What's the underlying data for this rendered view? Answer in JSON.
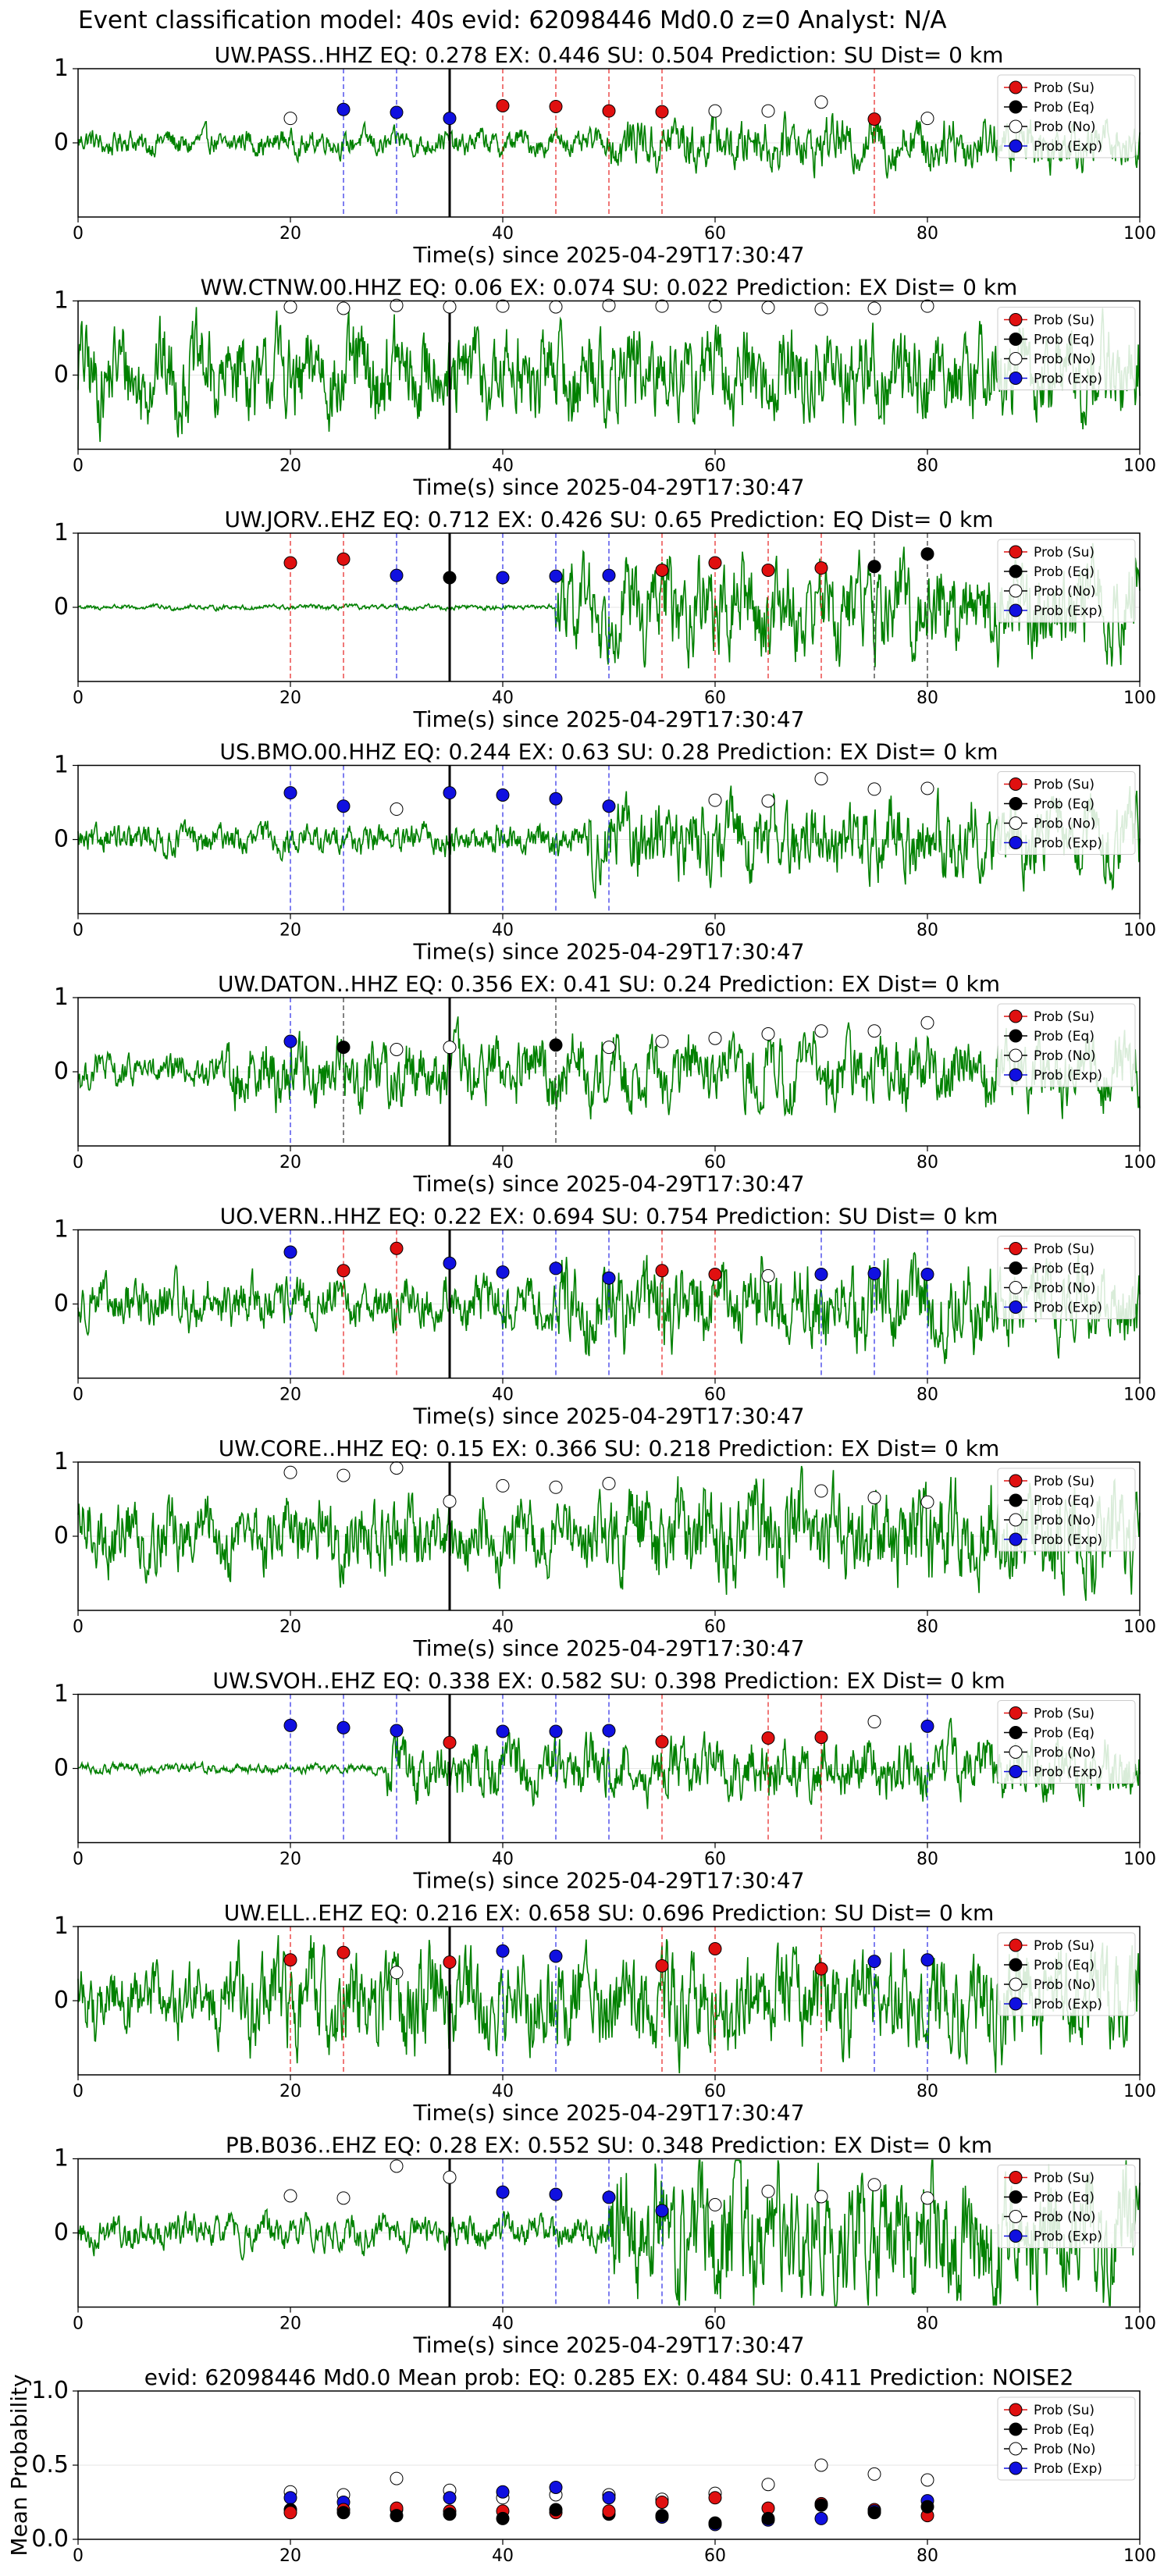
{
  "suptitle": "Event classification model: 40s evid: 62098446 Md0.0 z=0 Analyst: N/A",
  "colors": {
    "waveform": "#008000",
    "su": "#e01010",
    "eq": "#000000",
    "no": "#ffffff",
    "exp": "#1010e0",
    "axis": "#000000"
  },
  "legend_labels": [
    "Prob (Su)",
    "Prob (Eq)",
    "Prob (No)",
    "Prob (Exp)"
  ],
  "chart_data": [
    {
      "type": "line",
      "title": "UW.PASS..HHZ   EQ: 0.278  EX: 0.446  SU: 0.504   Prediction: SU    Dist= 0 km",
      "xlabel": "Time(s) since 2025-04-29T17:30:47",
      "xlim": [
        0,
        100
      ],
      "ylim": [
        -1,
        1
      ],
      "xticks": [
        0,
        20,
        40,
        60,
        80,
        100
      ],
      "yticks": [
        0,
        1
      ],
      "arrival": 35,
      "legend": "top-right",
      "amp": 0.15,
      "burst_start": 50,
      "burst_amp": 0.3,
      "points": [
        [
          20,
          "no",
          0.33
        ],
        [
          25,
          "exp",
          0.45
        ],
        [
          30,
          "exp",
          0.41
        ],
        [
          35,
          "exp",
          0.33
        ],
        [
          40,
          "su",
          0.5
        ],
        [
          45,
          "su",
          0.49
        ],
        [
          50,
          "su",
          0.43
        ],
        [
          55,
          "su",
          0.42
        ],
        [
          60,
          "no",
          0.43
        ],
        [
          65,
          "no",
          0.43
        ],
        [
          70,
          "no",
          0.55
        ],
        [
          75,
          "su",
          0.32
        ],
        [
          80,
          "no",
          0.33
        ]
      ]
    },
    {
      "type": "line",
      "title": "WW.CTNW.00.HHZ   EQ: 0.06  EX: 0.074  SU: 0.022   Prediction: EX    Dist= 0 km",
      "xlabel": "Time(s) since 2025-04-29T17:30:47",
      "xlim": [
        0,
        100
      ],
      "ylim": [
        -1,
        1
      ],
      "xticks": [
        0,
        20,
        40,
        60,
        80,
        100
      ],
      "yticks": [
        0,
        1
      ],
      "arrival": 35,
      "legend": "top-right",
      "amp": 0.55,
      "burst_start": 0,
      "burst_amp": 0.55,
      "points": [
        [
          20,
          "no",
          0.92
        ],
        [
          25,
          "no",
          0.9
        ],
        [
          30,
          "no",
          0.94
        ],
        [
          35,
          "no",
          0.92
        ],
        [
          40,
          "no",
          0.93
        ],
        [
          45,
          "no",
          0.92
        ],
        [
          50,
          "no",
          0.94
        ],
        [
          55,
          "no",
          0.93
        ],
        [
          60,
          "no",
          0.93
        ],
        [
          65,
          "no",
          0.91
        ],
        [
          70,
          "no",
          0.89
        ],
        [
          75,
          "no",
          0.9
        ],
        [
          80,
          "no",
          0.93
        ]
      ]
    },
    {
      "type": "line",
      "title": "UW.JORV..EHZ   EQ: 0.712  EX: 0.426  SU: 0.65   Prediction: EQ    Dist= 0 km",
      "xlabel": "Time(s) since 2025-04-29T17:30:47",
      "xlim": [
        0,
        100
      ],
      "ylim": [
        -1,
        1
      ],
      "xticks": [
        0,
        20,
        40,
        60,
        80,
        100
      ],
      "yticks": [
        0,
        1
      ],
      "arrival": 35,
      "legend": "top-right",
      "amp": 0.03,
      "burst_start": 45,
      "burst_amp": 0.55,
      "points": [
        [
          20,
          "su",
          0.6
        ],
        [
          25,
          "su",
          0.65
        ],
        [
          30,
          "exp",
          0.43
        ],
        [
          35,
          "eq",
          0.4
        ],
        [
          40,
          "exp",
          0.4
        ],
        [
          45,
          "exp",
          0.42
        ],
        [
          50,
          "exp",
          0.43
        ],
        [
          55,
          "su",
          0.5
        ],
        [
          60,
          "su",
          0.6
        ],
        [
          65,
          "su",
          0.5
        ],
        [
          70,
          "su",
          0.53
        ],
        [
          75,
          "eq",
          0.55
        ],
        [
          80,
          "eq",
          0.72
        ]
      ]
    },
    {
      "type": "line",
      "title": "US.BMO.00.HHZ   EQ: 0.244  EX: 0.63  SU: 0.28   Prediction: EX    Dist= 0 km",
      "xlabel": "Time(s) since 2025-04-29T17:30:47",
      "xlim": [
        0,
        100
      ],
      "ylim": [
        -1,
        1
      ],
      "xticks": [
        0,
        20,
        40,
        60,
        80,
        100
      ],
      "yticks": [
        0,
        1
      ],
      "arrival": 35,
      "legend": "top-right",
      "amp": 0.18,
      "burst_start": 48,
      "burst_amp": 0.45,
      "points": [
        [
          20,
          "exp",
          0.63
        ],
        [
          25,
          "exp",
          0.45
        ],
        [
          30,
          "no",
          0.41
        ],
        [
          35,
          "exp",
          0.63
        ],
        [
          40,
          "exp",
          0.6
        ],
        [
          45,
          "exp",
          0.55
        ],
        [
          50,
          "exp",
          0.45
        ],
        [
          60,
          "no",
          0.53
        ],
        [
          65,
          "no",
          0.52
        ],
        [
          70,
          "no",
          0.82
        ],
        [
          75,
          "no",
          0.68
        ],
        [
          80,
          "no",
          0.69
        ]
      ]
    },
    {
      "type": "line",
      "title": "UW.DATON..HHZ   EQ: 0.356  EX: 0.41  SU: 0.24   Prediction: EX    Dist= 0 km",
      "xlabel": "Time(s) since 2025-04-29T17:30:47",
      "xlim": [
        0,
        100
      ],
      "ylim": [
        -1,
        1
      ],
      "xticks": [
        0,
        20,
        40,
        60,
        80,
        100
      ],
      "yticks": [
        0,
        1
      ],
      "arrival": 35,
      "legend": "top-right",
      "amp": 0.2,
      "burst_start": 14,
      "burst_amp": 0.4,
      "points": [
        [
          20,
          "exp",
          0.41
        ],
        [
          25,
          "eq",
          0.33
        ],
        [
          30,
          "no",
          0.3
        ],
        [
          35,
          "no",
          0.33
        ],
        [
          45,
          "eq",
          0.36
        ],
        [
          50,
          "no",
          0.33
        ],
        [
          55,
          "no",
          0.41
        ],
        [
          60,
          "no",
          0.45
        ],
        [
          65,
          "no",
          0.51
        ],
        [
          70,
          "no",
          0.55
        ],
        [
          75,
          "no",
          0.55
        ],
        [
          80,
          "no",
          0.66
        ]
      ]
    },
    {
      "type": "line",
      "title": "UO.VERN..HHZ   EQ: 0.22  EX: 0.694  SU: 0.754   Prediction: SU    Dist= 0 km",
      "xlabel": "Time(s) since 2025-04-29T17:30:47",
      "xlim": [
        0,
        100
      ],
      "ylim": [
        -1,
        1
      ],
      "xticks": [
        0,
        20,
        40,
        60,
        80,
        100
      ],
      "yticks": [
        0,
        1
      ],
      "arrival": 35,
      "legend": "top-right",
      "amp": 0.3,
      "burst_start": 45,
      "burst_amp": 0.5,
      "points": [
        [
          20,
          "exp",
          0.7
        ],
        [
          25,
          "su",
          0.45
        ],
        [
          30,
          "su",
          0.75
        ],
        [
          35,
          "exp",
          0.55
        ],
        [
          40,
          "exp",
          0.43
        ],
        [
          45,
          "exp",
          0.48
        ],
        [
          50,
          "exp",
          0.35
        ],
        [
          55,
          "su",
          0.45
        ],
        [
          60,
          "su",
          0.4
        ],
        [
          65,
          "no",
          0.38
        ],
        [
          70,
          "exp",
          0.4
        ],
        [
          75,
          "exp",
          0.41
        ],
        [
          80,
          "exp",
          0.4
        ]
      ]
    },
    {
      "type": "line",
      "title": "UW.CORE..HHZ   EQ: 0.15  EX: 0.366  SU: 0.218   Prediction: EX    Dist= 0 km",
      "xlabel": "Time(s) since 2025-04-29T17:30:47",
      "xlim": [
        0,
        100
      ],
      "ylim": [
        -1,
        1
      ],
      "xticks": [
        0,
        20,
        40,
        60,
        80,
        100
      ],
      "yticks": [
        0,
        1
      ],
      "arrival": 35,
      "legend": "top-right",
      "amp": 0.42,
      "burst_start": 50,
      "burst_amp": 0.6,
      "points": [
        [
          20,
          "no",
          0.86
        ],
        [
          25,
          "no",
          0.82
        ],
        [
          30,
          "no",
          0.92
        ],
        [
          35,
          "no",
          0.47
        ],
        [
          40,
          "no",
          0.68
        ],
        [
          45,
          "no",
          0.66
        ],
        [
          50,
          "no",
          0.71
        ],
        [
          70,
          "no",
          0.61
        ],
        [
          75,
          "no",
          0.52
        ],
        [
          80,
          "no",
          0.46
        ]
      ]
    },
    {
      "type": "line",
      "title": "UW.SVOH..EHZ   EQ: 0.338  EX: 0.582  SU: 0.398   Prediction: EX    Dist= 0 km",
      "xlabel": "Time(s) since 2025-04-29T17:30:47",
      "xlim": [
        0,
        100
      ],
      "ylim": [
        -1,
        1
      ],
      "xticks": [
        0,
        20,
        40,
        60,
        80,
        100
      ],
      "yticks": [
        0,
        1
      ],
      "arrival": 35,
      "legend": "top-right",
      "amp": 0.06,
      "burst_start": 29,
      "burst_amp": 0.35,
      "points": [
        [
          20,
          "exp",
          0.58
        ],
        [
          25,
          "exp",
          0.55
        ],
        [
          30,
          "exp",
          0.51
        ],
        [
          35,
          "su",
          0.35
        ],
        [
          40,
          "exp",
          0.5
        ],
        [
          45,
          "exp",
          0.5
        ],
        [
          50,
          "exp",
          0.51
        ],
        [
          55,
          "su",
          0.36
        ],
        [
          65,
          "su",
          0.41
        ],
        [
          70,
          "su",
          0.42
        ],
        [
          75,
          "no",
          0.63
        ],
        [
          80,
          "exp",
          0.57
        ]
      ]
    },
    {
      "type": "line",
      "title": "UW.ELL..EHZ   EQ: 0.216  EX: 0.658  SU: 0.696   Prediction: SU    Dist= 0 km",
      "xlabel": "Time(s) since 2025-04-29T17:30:47",
      "xlim": [
        0,
        100
      ],
      "ylim": [
        -1,
        1
      ],
      "xticks": [
        0,
        20,
        40,
        60,
        80,
        100
      ],
      "yticks": [
        0,
        1
      ],
      "arrival": 35,
      "legend": "top-right",
      "amp": 0.4,
      "burst_start": 15,
      "burst_amp": 0.6,
      "points": [
        [
          20,
          "su",
          0.55
        ],
        [
          25,
          "su",
          0.65
        ],
        [
          30,
          "no",
          0.38
        ],
        [
          35,
          "su",
          0.52
        ],
        [
          40,
          "exp",
          0.67
        ],
        [
          45,
          "exp",
          0.6
        ],
        [
          55,
          "su",
          0.47
        ],
        [
          60,
          "su",
          0.7
        ],
        [
          70,
          "su",
          0.43
        ],
        [
          75,
          "exp",
          0.53
        ],
        [
          80,
          "exp",
          0.55
        ]
      ]
    },
    {
      "type": "line",
      "title": "PB.B036..EHZ   EQ: 0.28  EX: 0.552  SU: 0.348   Prediction: EX    Dist= 0 km",
      "xlabel": "Time(s) since 2025-04-29T17:30:47",
      "xlim": [
        0,
        100
      ],
      "ylim": [
        -1,
        1
      ],
      "xticks": [
        0,
        20,
        40,
        60,
        80,
        100
      ],
      "yticks": [
        0,
        1
      ],
      "arrival": 35,
      "legend": "top-right",
      "amp": 0.2,
      "burst_start": 50,
      "burst_amp": 0.75,
      "points": [
        [
          20,
          "no",
          0.5
        ],
        [
          25,
          "no",
          0.47
        ],
        [
          30,
          "no",
          0.9
        ],
        [
          35,
          "no",
          0.75
        ],
        [
          40,
          "exp",
          0.55
        ],
        [
          45,
          "exp",
          0.52
        ],
        [
          50,
          "exp",
          0.48
        ],
        [
          55,
          "exp",
          0.3
        ],
        [
          60,
          "no",
          0.38
        ],
        [
          65,
          "no",
          0.56
        ],
        [
          70,
          "no",
          0.49
        ],
        [
          75,
          "no",
          0.65
        ],
        [
          80,
          "no",
          0.47
        ]
      ]
    },
    {
      "type": "scatter",
      "title": "evid: 62098446  Md0.0   Mean prob:   EQ: 0.285  EX: 0.484  SU: 0.411   Prediction: NOISE2",
      "xlabel": "",
      "ylabel": "Mean Probability",
      "xlim": [
        0,
        100
      ],
      "ylim": [
        0,
        1
      ],
      "xticks": [
        0,
        20,
        40,
        60,
        80,
        100
      ],
      "yticks": [
        0.0,
        0.5,
        1.0
      ],
      "legend": "top-right",
      "points": [
        [
          20,
          "no",
          0.32
        ],
        [
          20,
          "exp",
          0.28
        ],
        [
          20,
          "eq",
          0.2
        ],
        [
          20,
          "su",
          0.18
        ],
        [
          25,
          "no",
          0.3
        ],
        [
          25,
          "exp",
          0.25
        ],
        [
          25,
          "su",
          0.2
        ],
        [
          25,
          "eq",
          0.18
        ],
        [
          30,
          "no",
          0.41
        ],
        [
          30,
          "exp",
          0.2
        ],
        [
          30,
          "su",
          0.21
        ],
        [
          30,
          "eq",
          0.16
        ],
        [
          35,
          "no",
          0.33
        ],
        [
          35,
          "exp",
          0.28
        ],
        [
          35,
          "su",
          0.19
        ],
        [
          35,
          "eq",
          0.17
        ],
        [
          40,
          "no",
          0.28
        ],
        [
          40,
          "exp",
          0.32
        ],
        [
          40,
          "su",
          0.19
        ],
        [
          40,
          "eq",
          0.14
        ],
        [
          45,
          "no",
          0.3
        ],
        [
          45,
          "exp",
          0.35
        ],
        [
          45,
          "su",
          0.18
        ],
        [
          45,
          "eq",
          0.2
        ],
        [
          50,
          "no",
          0.3
        ],
        [
          50,
          "exp",
          0.28
        ],
        [
          50,
          "eq",
          0.17
        ],
        [
          50,
          "su",
          0.19
        ],
        [
          55,
          "no",
          0.27
        ],
        [
          55,
          "su",
          0.25
        ],
        [
          55,
          "exp",
          0.15
        ],
        [
          55,
          "eq",
          0.16
        ],
        [
          60,
          "no",
          0.31
        ],
        [
          60,
          "su",
          0.28
        ],
        [
          60,
          "exp",
          0.1
        ],
        [
          60,
          "eq",
          0.11
        ],
        [
          65,
          "no",
          0.37
        ],
        [
          65,
          "su",
          0.21
        ],
        [
          65,
          "exp",
          0.13
        ],
        [
          65,
          "eq",
          0.14
        ],
        [
          70,
          "no",
          0.5
        ],
        [
          70,
          "su",
          0.24
        ],
        [
          70,
          "exp",
          0.14
        ],
        [
          70,
          "eq",
          0.23
        ],
        [
          75,
          "no",
          0.44
        ],
        [
          75,
          "su",
          0.2
        ],
        [
          75,
          "exp",
          0.19
        ],
        [
          75,
          "eq",
          0.18
        ],
        [
          80,
          "no",
          0.4
        ],
        [
          80,
          "exp",
          0.26
        ],
        [
          80,
          "su",
          0.16
        ],
        [
          80,
          "eq",
          0.22
        ]
      ]
    }
  ]
}
